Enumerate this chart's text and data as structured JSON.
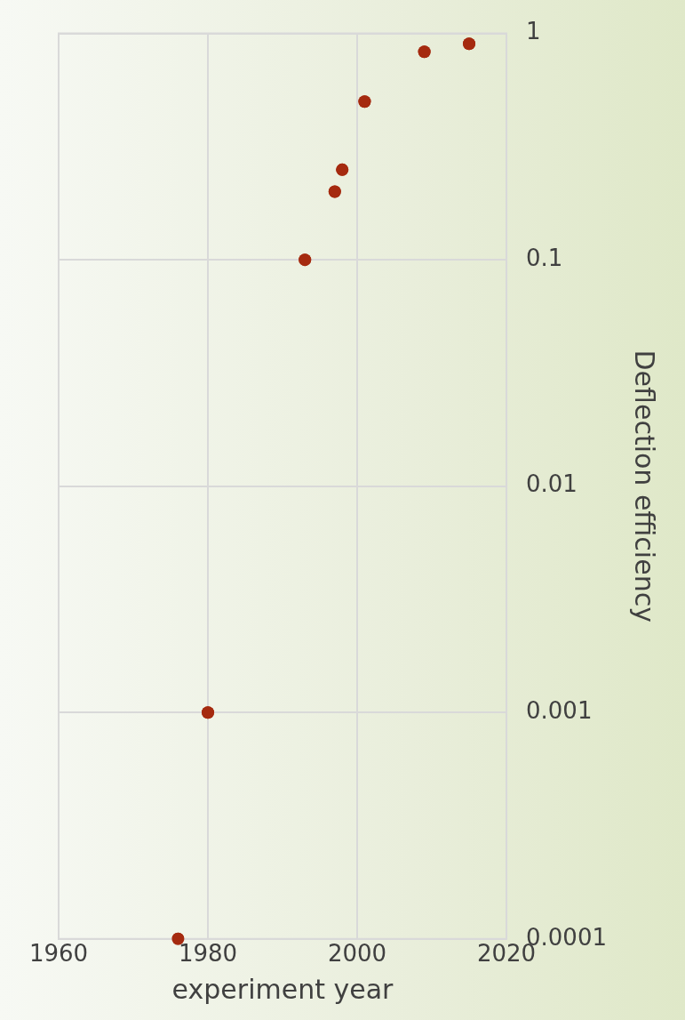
{
  "chart_data": {
    "type": "scatter",
    "xlabel": "experiment year",
    "ylabel": "Deflection efficiency",
    "x": [
      1976,
      1980,
      1993,
      1997,
      1998,
      2001,
      2009,
      2015
    ],
    "series": [
      {
        "color": "#a52a0f",
        "values": [
          0.0001,
          0.001,
          0.1,
          0.2,
          0.25,
          0.5,
          0.83,
          0.9
        ]
      }
    ],
    "xlim": [
      1960,
      2020
    ],
    "xticks": [
      1960,
      1980,
      2000,
      2020
    ],
    "ylim": [
      0.0001,
      1
    ],
    "yticks": [
      0.0001,
      0.001,
      0.01,
      0.1,
      1
    ],
    "log": "y",
    "grid": true,
    "marker": "circle",
    "legend": false
  }
}
